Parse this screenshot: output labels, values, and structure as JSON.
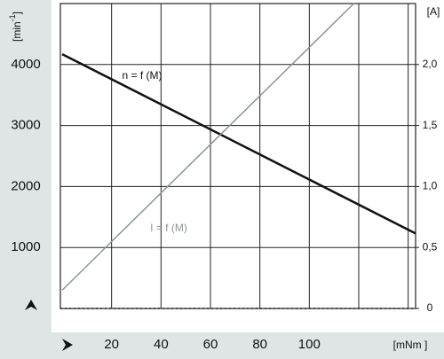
{
  "chart_data": {
    "type": "line",
    "y_label": "[min",
    "y_label_exp": "-1",
    "y_label_end": "]",
    "y2_label": "[A]",
    "x_label": "[mNm ]",
    "xlim": [
      0,
      143
    ],
    "xticks": [
      20,
      40,
      60,
      80,
      100,
      {
        "value": 120,
        "label": null
      },
      {
        "value": 140,
        "label": null
      }
    ],
    "ylim": [
      0,
      5000
    ],
    "yticks": [
      1000,
      2000,
      3000,
      4000
    ],
    "y2lim": [
      0,
      2.5
    ],
    "y2ticks": [
      0,
      {
        "value": 0.5,
        "label": "0,5"
      },
      {
        "value": 1.0,
        "label": "1,0"
      },
      {
        "value": 1.5,
        "label": "1,5"
      },
      {
        "value": 2.0,
        "label": "2,0"
      }
    ],
    "grid": true,
    "series": [
      {
        "name": "n = f (M)",
        "color": "#111111",
        "x": [
          0,
          143
        ],
        "values": [
          4170,
          1230
        ]
      },
      {
        "name": "I = f (M)",
        "color": "#8a9696",
        "axis": "y2",
        "x": [
          0,
          118
        ],
        "values": [
          0.15,
          2.5
        ]
      }
    ]
  }
}
